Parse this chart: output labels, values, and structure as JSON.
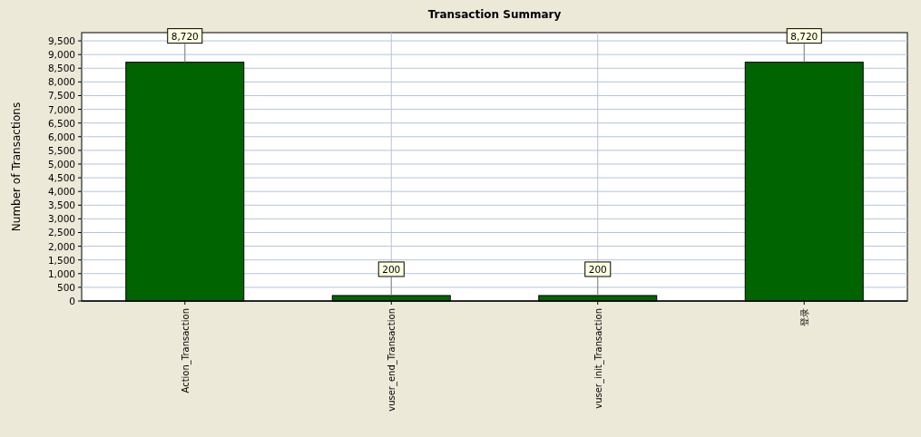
{
  "chart_data": {
    "type": "bar",
    "title": "Transaction Summary",
    "ylabel": "Number of Transactions",
    "categories": [
      "Action_Transaction",
      "vuser_end_Transaction",
      "vuser_init_Transaction",
      "登录"
    ],
    "values": [
      8720,
      200,
      200,
      8720
    ],
    "color": "#006400",
    "value_labels": [
      "8,720",
      "200",
      "200",
      "8,720"
    ],
    "ylim": [
      0,
      9800
    ],
    "yticks": [
      0,
      500,
      {
        "value": 1000,
        "label": "1,000"
      },
      {
        "value": 1500,
        "label": "1,500"
      },
      {
        "value": 2000,
        "label": "2,000"
      },
      {
        "value": 2500,
        "label": "2,500"
      },
      {
        "value": 3000,
        "label": "3,000"
      },
      {
        "value": 3500,
        "label": "3,500"
      },
      {
        "value": 4000,
        "label": "4,000"
      },
      {
        "value": 4500,
        "label": "4,500"
      },
      {
        "value": 5000,
        "label": "5,000"
      },
      {
        "value": 5500,
        "label": "5,500"
      },
      {
        "value": 6000,
        "label": "6,000"
      },
      {
        "value": 6500,
        "label": "6,500"
      },
      {
        "value": 7000,
        "label": "7,000"
      },
      {
        "value": 7500,
        "label": "7,500"
      },
      {
        "value": 8000,
        "label": "8,000"
      },
      {
        "value": 8500,
        "label": "8,500"
      },
      {
        "value": 9000,
        "label": "9,000"
      },
      {
        "value": 9500,
        "label": "9,500"
      }
    ],
    "grid": true
  }
}
